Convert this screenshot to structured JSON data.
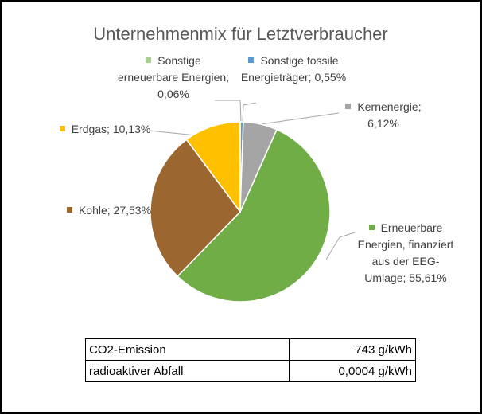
{
  "chart_data": {
    "type": "pie",
    "title": "Unternehmenmix für Letztverbraucher",
    "categories": [
      "Sonstige fossile Energieträger",
      "Kernenergie",
      "Erneuerbare Energien, finanziert aus der EEG-Umlage",
      "Kohle",
      "Erdgas",
      "Sonstige erneuerbare Energien"
    ],
    "values": [
      0.55,
      6.12,
      55.61,
      27.53,
      10.13,
      0.06
    ],
    "value_labels": [
      "0,55%",
      "6,12%",
      "55,61%",
      "27,53%",
      "10,13%",
      "0,06%"
    ],
    "label_separator": "; ",
    "colors": [
      "#5b9bd5",
      "#a5a5a5",
      "#70ad47",
      "#9c6631",
      "#ffc000",
      "#a9d18e"
    ]
  },
  "table": {
    "rows": [
      [
        "CO2-Emission",
        "743 g/kWh"
      ],
      [
        "radioaktiver Abfall",
        "0,0004 g/kWh"
      ]
    ]
  }
}
